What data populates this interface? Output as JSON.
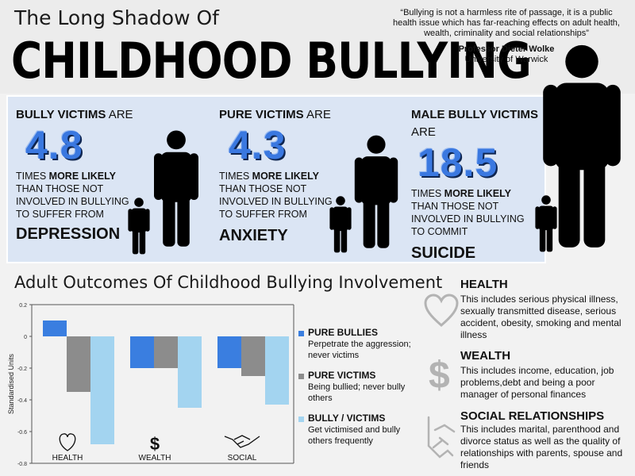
{
  "header": {
    "subtitle": "The Long Shadow Of",
    "title": "CHILDHOOD BULLYING",
    "quote": "“Bullying is not a harmless rite of passage, it is a public health issue which has far-reaching effects on adult health, wealth, criminality and social relationships”",
    "author": "Professor Dieter Wolke",
    "affiliation": "University of Warwick"
  },
  "stats": [
    {
      "lead_bold": "BULLY VICTIMS",
      "lead_rest": " ARE",
      "value": "4.8",
      "desc_a": "TIMES ",
      "desc_b": "MORE LIKELY",
      "desc_c": " THAN THOSE NOT INVOLVED IN BULLYING TO SUFFER FROM",
      "outcome": "DEPRESSION"
    },
    {
      "lead_bold": "PURE VICTIMS",
      "lead_rest": " ARE",
      "value": "4.3",
      "desc_a": "TIMES ",
      "desc_b": "MORE LIKELY",
      "desc_c": " THAN THOSE NOT INVOLVED IN BULLYING TO SUFFER FROM",
      "outcome": "ANXIETY"
    },
    {
      "lead_bold": "MALE BULLY VICTIMS",
      "lead_rest": " ARE",
      "value": "18.5",
      "desc_a": "TIMES ",
      "desc_b": "MORE LIKELY",
      "desc_c": " THAN THOSE NOT INVOLVED IN BULLYING TO COMMIT",
      "outcome": "SUICIDE"
    }
  ],
  "section": {
    "title": "Adult Outcomes Of Childhood Bullying Involvement"
  },
  "chart_data": {
    "type": "bar",
    "ylabel": "Standardised Units",
    "ylim": [
      -0.8,
      0.2
    ],
    "yticks": [
      "0.2",
      "0",
      "-0.2",
      "-0.4",
      "-0.6",
      "-0.8"
    ],
    "ytick_values": [
      0.2,
      0,
      -0.2,
      -0.4,
      -0.6,
      -0.8
    ],
    "categories": [
      "HEALTH",
      "WEALTH",
      "SOCIAL"
    ],
    "series": [
      {
        "name": "PURE BULLIES",
        "color": "#3a7ee0",
        "values": [
          0.1,
          -0.2,
          -0.2
        ]
      },
      {
        "name": "PURE VICTIMS",
        "color": "#8c8c8c",
        "values": [
          -0.35,
          -0.2,
          -0.25
        ]
      },
      {
        "name": "BULLY / VICTIMS",
        "color": "#a3d4f0",
        "values": [
          -0.68,
          -0.45,
          -0.43
        ]
      }
    ],
    "grid": false
  },
  "legend": [
    {
      "title": "PURE BULLIES",
      "desc": "Perpetrate the aggression; never victims",
      "color": "#3a7ee0"
    },
    {
      "title": "PURE VICTIMS",
      "desc": "Being bullied; never bully others",
      "color": "#8c8c8c"
    },
    {
      "title": "BULLY / VICTIMS",
      "desc": "Get victimised and bully others frequently",
      "color": "#a3d4f0"
    }
  ],
  "outcomes": [
    {
      "title": "HEALTH",
      "desc": "This includes serious physical illness, sexually transmitted disease, serious accident, obesity, smoking and mental illness",
      "icon": "heart-icon"
    },
    {
      "title": "WEALTH",
      "desc": "This includes income, education, job problems,debt and being a poor manager of personal finances",
      "icon": "dollar-icon"
    },
    {
      "title": "SOCIAL RELATIONSHIPS",
      "desc": "This includes marital, parenthood and divorce status as well as the quality of relationships with parents, spouse and friends",
      "icon": "handshake-icon"
    }
  ],
  "colors": {
    "accent_blue": "#3a78e0",
    "banner_bg": "#dbe5f4"
  }
}
